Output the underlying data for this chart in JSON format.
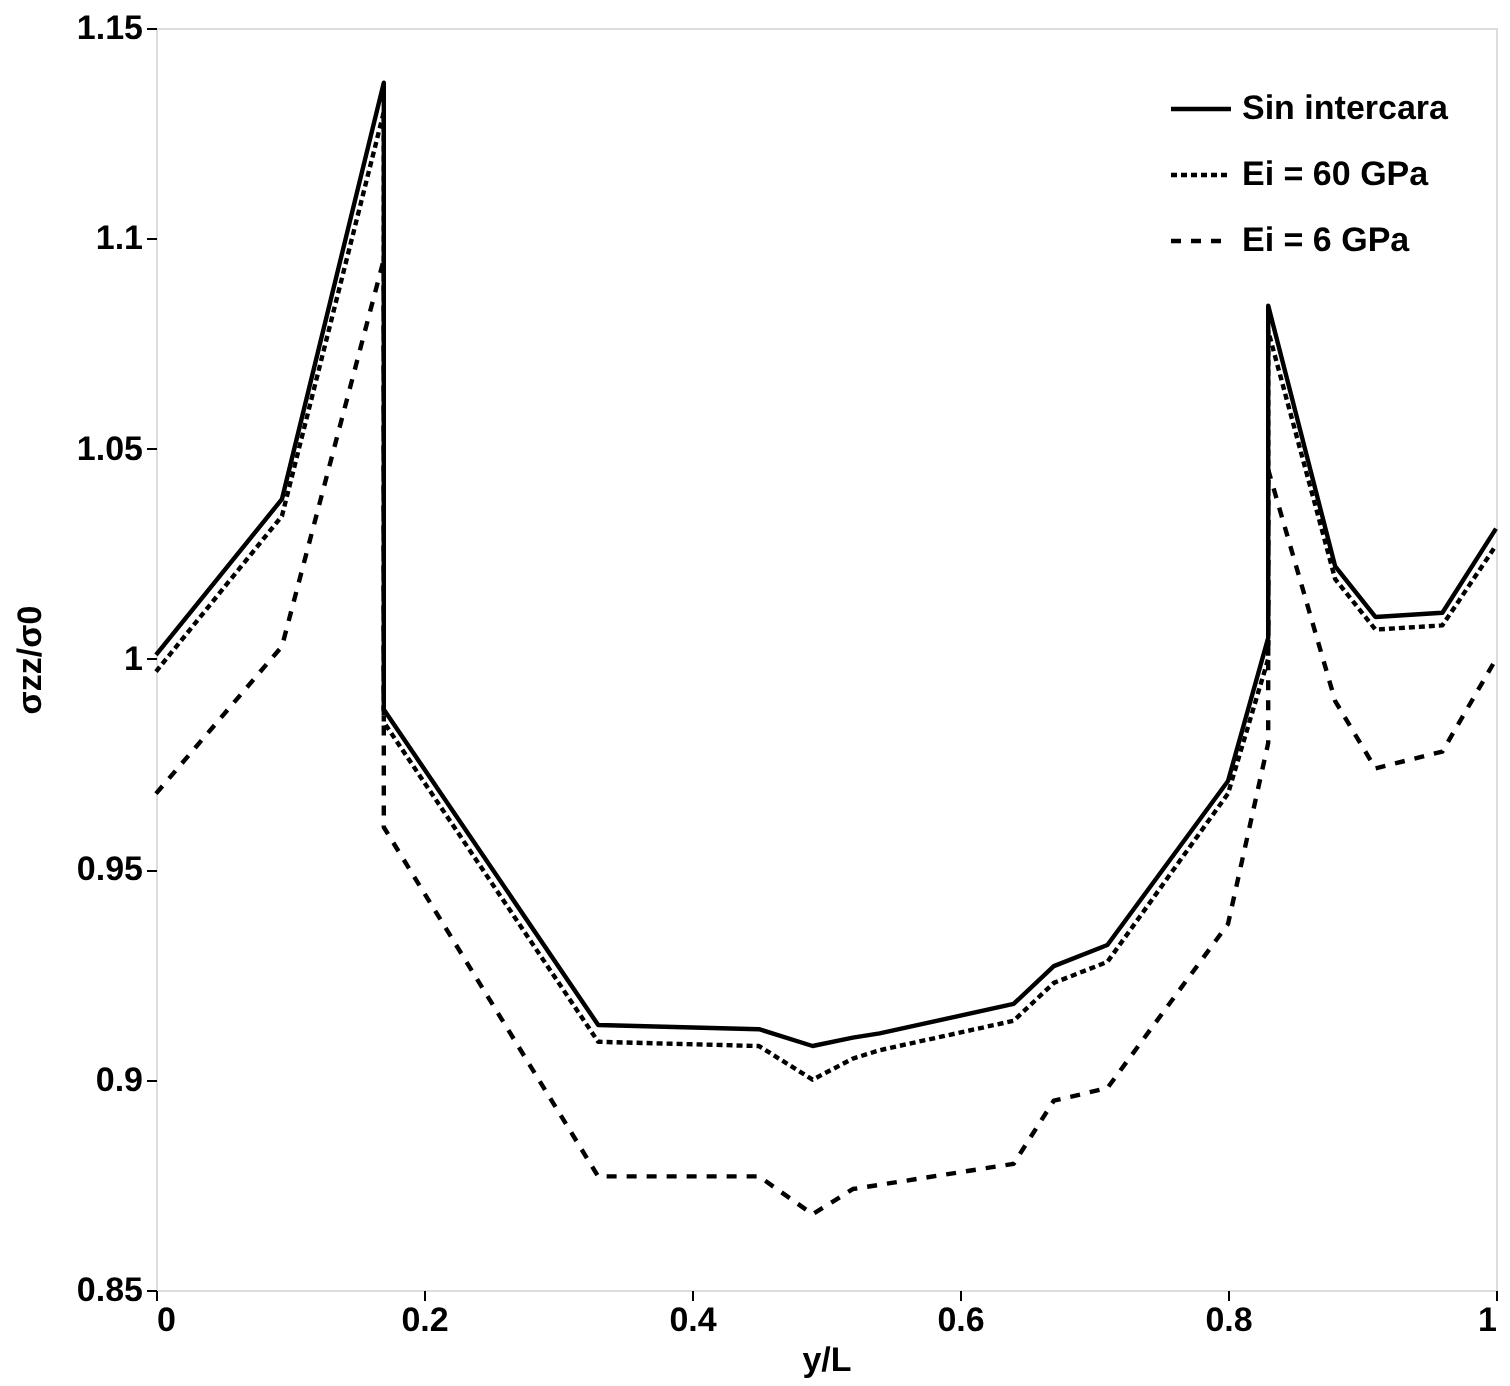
{
  "chart_data": {
    "type": "line",
    "xlabel": "y/L",
    "ylabel": "σzz/σ0",
    "xlim": [
      0,
      1
    ],
    "xticks": [
      0,
      0.2,
      0.4,
      0.6,
      0.8,
      1
    ],
    "ylim": [
      0.85,
      1.15
    ],
    "yticks": [
      0.85,
      0.9,
      0.95,
      1,
      1.05,
      1.1,
      1.15
    ],
    "grid": false,
    "legend": "top right",
    "marker": "none",
    "series": [
      {
        "name": "Sin intercara",
        "color": "#000000",
        "line_style": "solid",
        "x": [
          0,
          0.094,
          0.17,
          0.17,
          0.33,
          0.45,
          0.49,
          0.52,
          0.54,
          0.64,
          0.67,
          0.71,
          0.8,
          0.83,
          0.83,
          0.88,
          0.91,
          0.96,
          1.0
        ],
        "values": [
          1.001,
          1.038,
          1.137,
          0.988,
          0.913,
          0.912,
          0.908,
          0.91,
          0.911,
          0.918,
          0.927,
          0.932,
          0.971,
          1.005,
          1.084,
          1.022,
          1.01,
          1.011,
          1.031
        ]
      },
      {
        "name": "Ei = 60 GPa",
        "color": "#000000",
        "line_style": "dotted",
        "x": [
          0,
          0.094,
          0.17,
          0.17,
          0.33,
          0.45,
          0.49,
          0.52,
          0.54,
          0.64,
          0.67,
          0.71,
          0.8,
          0.83,
          0.83,
          0.88,
          0.91,
          0.96,
          1.0
        ],
        "values": [
          0.997,
          1.034,
          1.13,
          0.985,
          0.909,
          0.908,
          0.9,
          0.905,
          0.907,
          0.914,
          0.923,
          0.928,
          0.968,
          1.0,
          1.078,
          1.019,
          1.007,
          1.008,
          1.027
        ]
      },
      {
        "name": "Ei = 6 GPa",
        "color": "#000000",
        "line_style": "dashed",
        "x": [
          0,
          0.094,
          0.17,
          0.17,
          0.33,
          0.45,
          0.49,
          0.52,
          0.54,
          0.64,
          0.67,
          0.71,
          0.8,
          0.83,
          0.83,
          0.88,
          0.91,
          0.96,
          1.0
        ],
        "values": [
          0.968,
          1.003,
          1.095,
          0.96,
          0.877,
          0.877,
          0.868,
          0.874,
          0.875,
          0.88,
          0.895,
          0.898,
          0.937,
          0.98,
          1.045,
          0.99,
          0.974,
          0.978,
          1.0
        ]
      }
    ]
  }
}
